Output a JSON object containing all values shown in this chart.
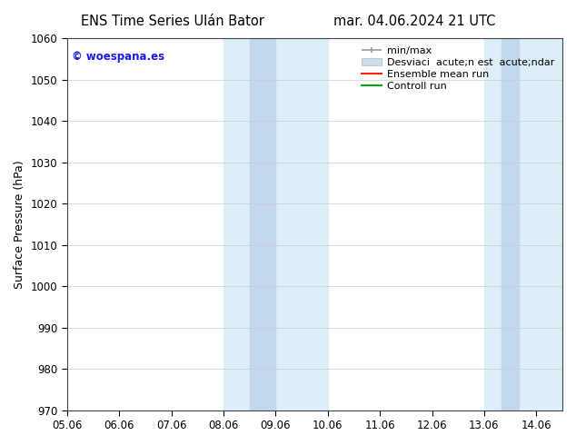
{
  "title_left": "ENS Time Series Ulán Bator",
  "title_right": "mar. 04.06.2024 21 UTC",
  "ylabel": "Surface Pressure (hPa)",
  "ylim": [
    970,
    1060
  ],
  "yticks": [
    970,
    980,
    990,
    1000,
    1010,
    1020,
    1030,
    1040,
    1050,
    1060
  ],
  "xlim": [
    0.0,
    9.5
  ],
  "xtick_labels": [
    "05.06",
    "06.06",
    "07.06",
    "08.06",
    "09.06",
    "10.06",
    "11.06",
    "12.06",
    "13.06",
    "14.06"
  ],
  "xtick_positions": [
    0,
    1,
    2,
    3,
    4,
    5,
    6,
    7,
    8,
    9
  ],
  "bg_color": "#ffffff",
  "plot_bg_color": "#ffffff",
  "band1_light_start": 3.0,
  "band1_light_end": 5.0,
  "band1_dark_start": 3.5,
  "band1_dark_end": 4.0,
  "band2_light_start": 8.0,
  "band2_light_end": 9.5,
  "band2_dark_start": 8.333,
  "band2_dark_end": 8.667,
  "band_light_color": "#ddeef8",
  "band_dark_color": "#c2d8ec",
  "watermark_text": "© woespana.es",
  "watermark_color": "#1a1aee",
  "legend_label_minmax": "min/max",
  "legend_label_std": "Desviaci  acute;n est  acute;ndar",
  "legend_label_ens": "Ensemble mean run",
  "legend_label_ctrl": "Controll run",
  "legend_color_minmax": "#999999",
  "legend_color_std": "#ccdde8",
  "legend_color_ens": "#ff2200",
  "legend_color_ctrl": "#00aa00",
  "title_fontsize": 10.5,
  "axis_label_fontsize": 9,
  "tick_fontsize": 8.5,
  "legend_fontsize": 8
}
